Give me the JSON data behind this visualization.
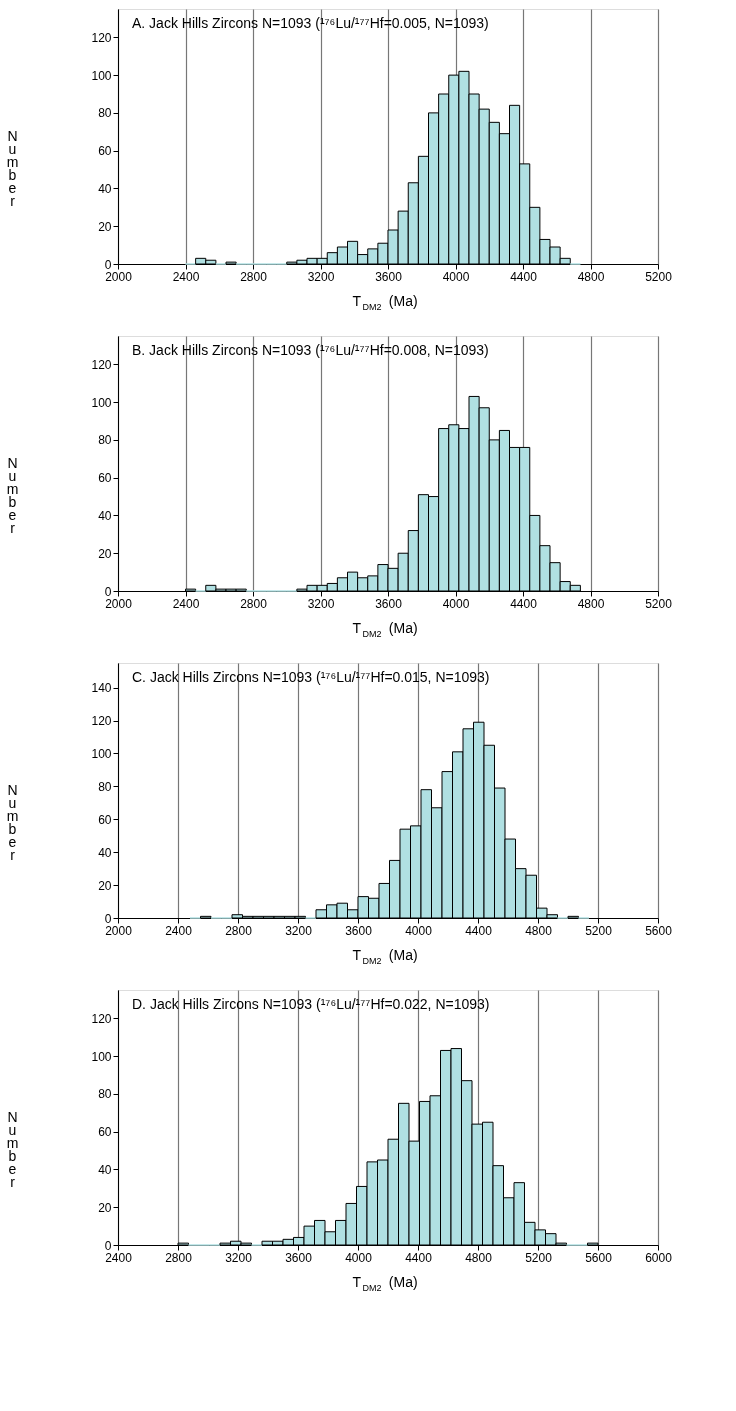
{
  "chart_data": [
    {
      "type": "histogram",
      "title": "A. Jack Hills Zircons N=1093 (¹⁷⁶Lu/¹⁷⁷Hf=0.005, N=1093)",
      "xlabel": "T$_{DM2}$ (Ma)",
      "ylabel": "Number",
      "color": "#b0e0e2",
      "grid": "x",
      "bins": [
        2400,
        2460,
        2520,
        2580,
        2640,
        2700,
        2760,
        2820,
        2880,
        2940,
        3000,
        3060,
        3120,
        3180,
        3240,
        3300,
        3360,
        3420,
        3480,
        3540,
        3600,
        3660,
        3720,
        3780,
        3840,
        3900,
        3960,
        4020,
        4080,
        4140,
        4200,
        4260,
        4320,
        4380,
        4440,
        4500,
        4560,
        4620,
        4680,
        4740
      ],
      "values": [
        0,
        3,
        2,
        0,
        1,
        0,
        0,
        0,
        0,
        0,
        1,
        2,
        3,
        3,
        6,
        9,
        12,
        5,
        8,
        11,
        18,
        28,
        43,
        57,
        80,
        90,
        100,
        102,
        90,
        82,
        75,
        69,
        84,
        53,
        30,
        13,
        9,
        3,
        0
      ],
      "xlim": [
        2000,
        5200
      ],
      "xticks": [
        2000,
        2400,
        2800,
        3200,
        3600,
        4000,
        4400,
        4800,
        5200
      ],
      "ylim": [
        0,
        135
      ],
      "yticks": [
        0,
        20,
        40,
        60,
        80,
        100,
        120
      ]
    },
    {
      "type": "histogram",
      "title": "B. Jack Hills Zircons N=1093 (¹⁷⁶Lu/¹⁷⁷Hf=0.008, N=1093)",
      "xlabel": "T$_{DM2}$ (Ma)",
      "ylabel": "Number",
      "color": "#b0e0e2",
      "grid": "x",
      "bins": [
        2400,
        2460,
        2520,
        2580,
        2640,
        2700,
        2760,
        2820,
        2880,
        2940,
        3000,
        3060,
        3120,
        3180,
        3240,
        3300,
        3360,
        3420,
        3480,
        3540,
        3600,
        3660,
        3720,
        3780,
        3840,
        3900,
        3960,
        4020,
        4080,
        4140,
        4200,
        4260,
        4320,
        4380,
        4440,
        4500,
        4560,
        4620,
        4680,
        4740
      ],
      "values": [
        1,
        0,
        3,
        1,
        1,
        1,
        0,
        0,
        0,
        0,
        0,
        1,
        3,
        3,
        4,
        7,
        10,
        7,
        8,
        14,
        12,
        20,
        32,
        51,
        50,
        86,
        88,
        86,
        103,
        97,
        80,
        85,
        76,
        76,
        40,
        24,
        15,
        5,
        3
      ],
      "xlim": [
        2000,
        5200
      ],
      "xticks": [
        2000,
        2400,
        2800,
        3200,
        3600,
        4000,
        4400,
        4800,
        5200
      ],
      "ylim": [
        0,
        135
      ],
      "yticks": [
        0,
        20,
        40,
        60,
        80,
        100,
        120
      ]
    },
    {
      "type": "histogram",
      "title": "C. Jack Hills Zircons N=1093 (¹⁷⁶Lu/¹⁷⁷Hf=0.015, N=1093)",
      "xlabel": "T$_{DM2}$ (Ma)",
      "ylabel": "Number",
      "color": "#b0e0e2",
      "grid": "x",
      "bins": [
        2480,
        2550,
        2620,
        2690,
        2760,
        2830,
        2900,
        2970,
        3040,
        3110,
        3180,
        3250,
        3320,
        3390,
        3460,
        3530,
        3600,
        3670,
        3740,
        3810,
        3880,
        3950,
        4020,
        4090,
        4160,
        4230,
        4300,
        4370,
        4440,
        4510,
        4580,
        4650,
        4720,
        4790,
        4860,
        4930,
        5000,
        5070,
        5140
      ],
      "values": [
        0,
        1,
        0,
        0,
        2,
        1,
        1,
        1,
        1,
        1,
        1,
        0,
        5,
        8,
        9,
        5,
        13,
        12,
        21,
        35,
        54,
        56,
        78,
        67,
        89,
        101,
        115,
        119,
        105,
        79,
        48,
        30,
        26,
        6,
        2,
        0,
        1,
        0
      ],
      "xlim": [
        2000,
        5600
      ],
      "xticks": [
        2000,
        2400,
        2800,
        3200,
        3600,
        4000,
        4400,
        4800,
        5200,
        5600
      ],
      "ylim": [
        0,
        155
      ],
      "yticks": [
        0,
        20,
        40,
        60,
        80,
        100,
        120,
        140
      ]
    },
    {
      "type": "histogram",
      "title": "D. Jack Hills Zircons N=1093 (¹⁷⁶Lu/¹⁷⁷Hf=0.022, N=1093)",
      "xlabel": "T$_{DM2}$ (Ma)",
      "ylabel": "Number",
      "color": "#b0e0e2",
      "grid": "x",
      "bins": [
        2800,
        2870,
        2940,
        3010,
        3080,
        3150,
        3220,
        3290,
        3360,
        3430,
        3500,
        3570,
        3640,
        3710,
        3780,
        3850,
        3920,
        3990,
        4060,
        4130,
        4200,
        4270,
        4340,
        4410,
        4480,
        4550,
        4620,
        4690,
        4760,
        4830,
        4900,
        4970,
        5040,
        5110,
        5180,
        5250,
        5320,
        5390,
        5460,
        5530,
        5600
      ],
      "values": [
        1,
        0,
        0,
        0,
        1,
        2,
        1,
        0,
        2,
        2,
        3,
        4,
        10,
        13,
        7,
        13,
        22,
        31,
        44,
        45,
        56,
        75,
        55,
        76,
        79,
        103,
        104,
        87,
        64,
        65,
        42,
        25,
        33,
        12,
        8,
        6,
        1,
        0,
        0,
        1
      ],
      "xlim": [
        2400,
        6000
      ],
      "xticks": [
        2400,
        2800,
        3200,
        3600,
        4000,
        4400,
        4800,
        5200,
        5600,
        6000
      ],
      "ylim": [
        0,
        135
      ],
      "yticks": [
        0,
        20,
        40,
        60,
        80,
        100,
        120
      ]
    }
  ]
}
